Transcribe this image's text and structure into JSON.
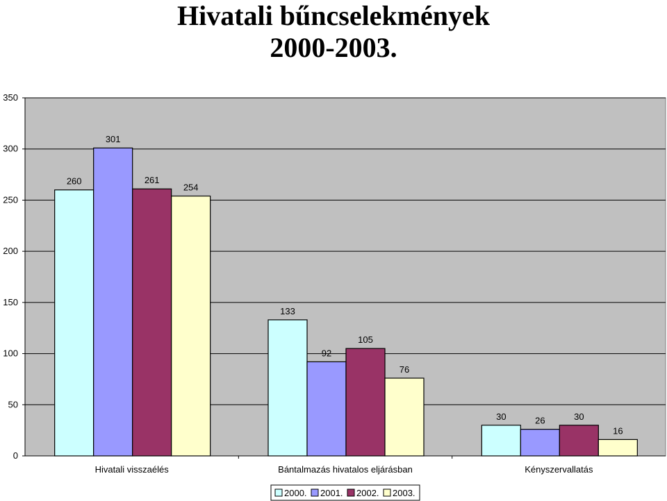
{
  "chart_data": {
    "type": "bar",
    "title_lines": [
      "Hivatali bűncselekmények",
      "2000-2003."
    ],
    "categories": [
      "Hivatali visszaélés",
      "Bántalmazás hivatalos eljárásban",
      "Kényszervallatás"
    ],
    "series": [
      {
        "name": "2000.",
        "values": [
          260,
          133,
          30
        ],
        "color": "#ccffff"
      },
      {
        "name": "2001.",
        "values": [
          301,
          92,
          26
        ],
        "color": "#9999ff"
      },
      {
        "name": "2002.",
        "values": [
          261,
          105,
          30
        ],
        "color": "#993366"
      },
      {
        "name": "2003.",
        "values": [
          254,
          76,
          16
        ],
        "color": "#ffffcc"
      }
    ],
    "ylim": [
      0,
      350
    ],
    "yticks": [
      0,
      50,
      100,
      150,
      200,
      250,
      300,
      350
    ],
    "xlabel": "",
    "ylabel": "",
    "grid": true,
    "legend_position": "bottom",
    "plot_background": "#c0c0c0",
    "gridline_color": "#000000"
  }
}
